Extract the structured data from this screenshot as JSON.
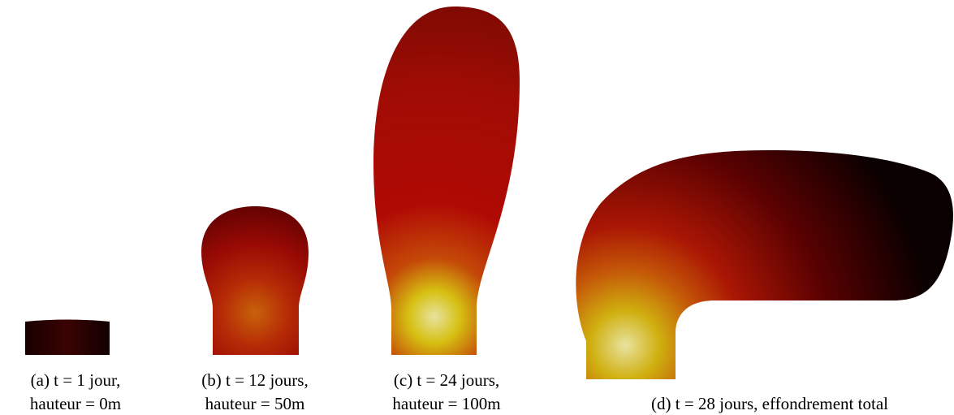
{
  "panels": [
    {
      "caption": [
        "(a) t = 1 jour,",
        "hauteur = 0m"
      ]
    },
    {
      "caption": [
        "(b) t = 12 jours,",
        "hauteur = 50m"
      ]
    },
    {
      "caption": [
        "(c) t = 24 jours,",
        "hauteur = 100m"
      ]
    },
    {
      "caption": [
        "(d) t = 28 jours, effondrement total"
      ]
    }
  ]
}
